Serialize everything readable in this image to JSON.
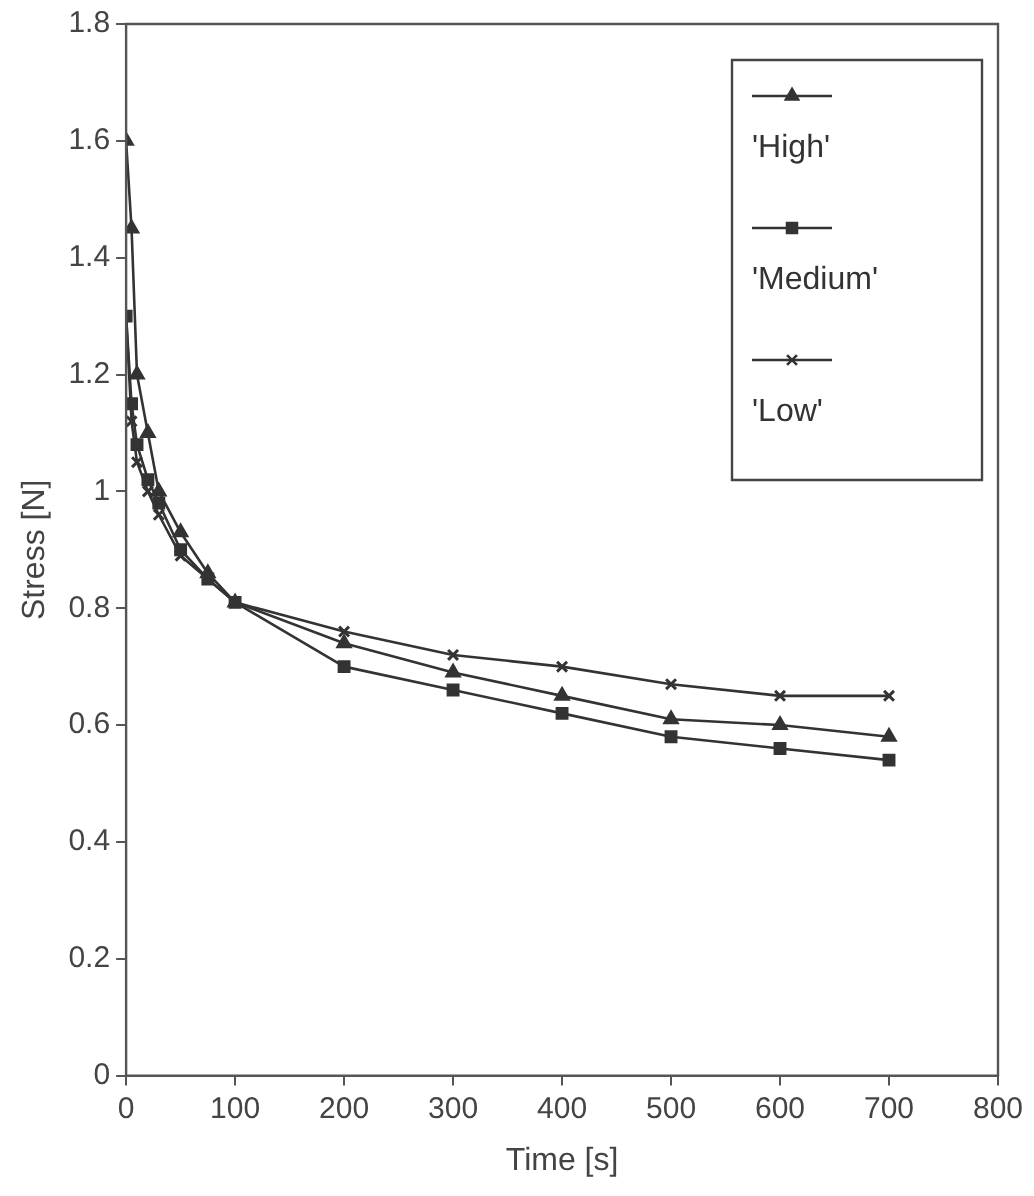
{
  "chart_data": {
    "type": "line",
    "xlabel": "Time [s]",
    "ylabel": "Stress [N]",
    "x": [
      0,
      5,
      10,
      20,
      30,
      50,
      75,
      100,
      200,
      300,
      400,
      500,
      600,
      700
    ],
    "xlim": [
      0,
      800
    ],
    "xticks": [
      0,
      100,
      200,
      300,
      400,
      500,
      600,
      700,
      800
    ],
    "ylim": [
      0,
      1.8
    ],
    "yticks": [
      0,
      0.2,
      0.4,
      0.6,
      0.8,
      1,
      1.2,
      1.4,
      1.6,
      1.8
    ],
    "grid": false,
    "legend": "top right",
    "line_style": "solid",
    "series": [
      {
        "name": "'High'",
        "color": "#333333",
        "marker": "triangle",
        "values": [
          1.6,
          1.45,
          1.2,
          1.1,
          1.0,
          0.93,
          0.86,
          0.81,
          0.74,
          0.69,
          0.65,
          0.61,
          0.6,
          0.58
        ]
      },
      {
        "name": "'Medium'",
        "color": "#333333",
        "marker": "square",
        "values": [
          1.3,
          1.15,
          1.08,
          1.02,
          0.98,
          0.9,
          0.85,
          0.81,
          0.7,
          0.66,
          0.62,
          0.58,
          0.56,
          0.54
        ]
      },
      {
        "name": "'Low'",
        "color": "#333333",
        "marker": "cross",
        "values": [
          1.3,
          1.12,
          1.05,
          1.0,
          0.96,
          0.89,
          0.85,
          0.81,
          0.76,
          0.72,
          0.7,
          0.67,
          0.65,
          0.65
        ]
      }
    ]
  }
}
